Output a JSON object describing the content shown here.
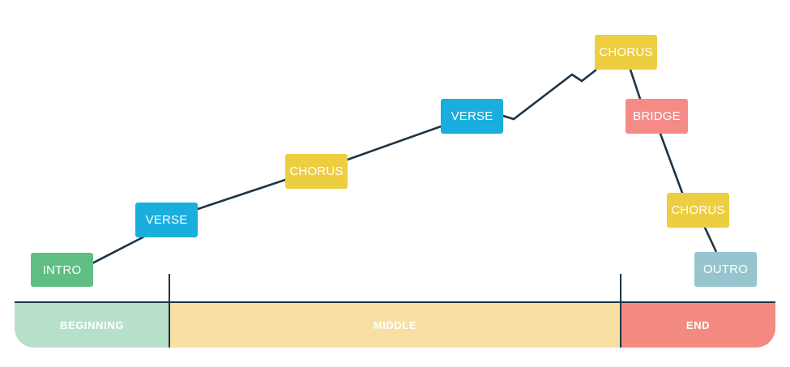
{
  "colors": {
    "line": "#1d3545",
    "intro": "#5fbf83",
    "verse": "#19aede",
    "chorus": "#edce40",
    "bridge": "#f48b87",
    "outro": "#96c4cf",
    "beginning": "#b7e0cb",
    "middle": "#f8dfa3",
    "end": "#f48b80"
  },
  "blocks": {
    "intro": "INTRO",
    "verse_1": "VERSE",
    "chorus_1": "CHORUS",
    "verse_2": "VERSE",
    "chorus_2": "CHORUS",
    "bridge": "BRIDGE",
    "chorus_3": "CHORUS",
    "outro": "OUTRO"
  },
  "sections": {
    "beginning": "BEGINNING",
    "middle": "MIDDLE",
    "end": "END"
  }
}
